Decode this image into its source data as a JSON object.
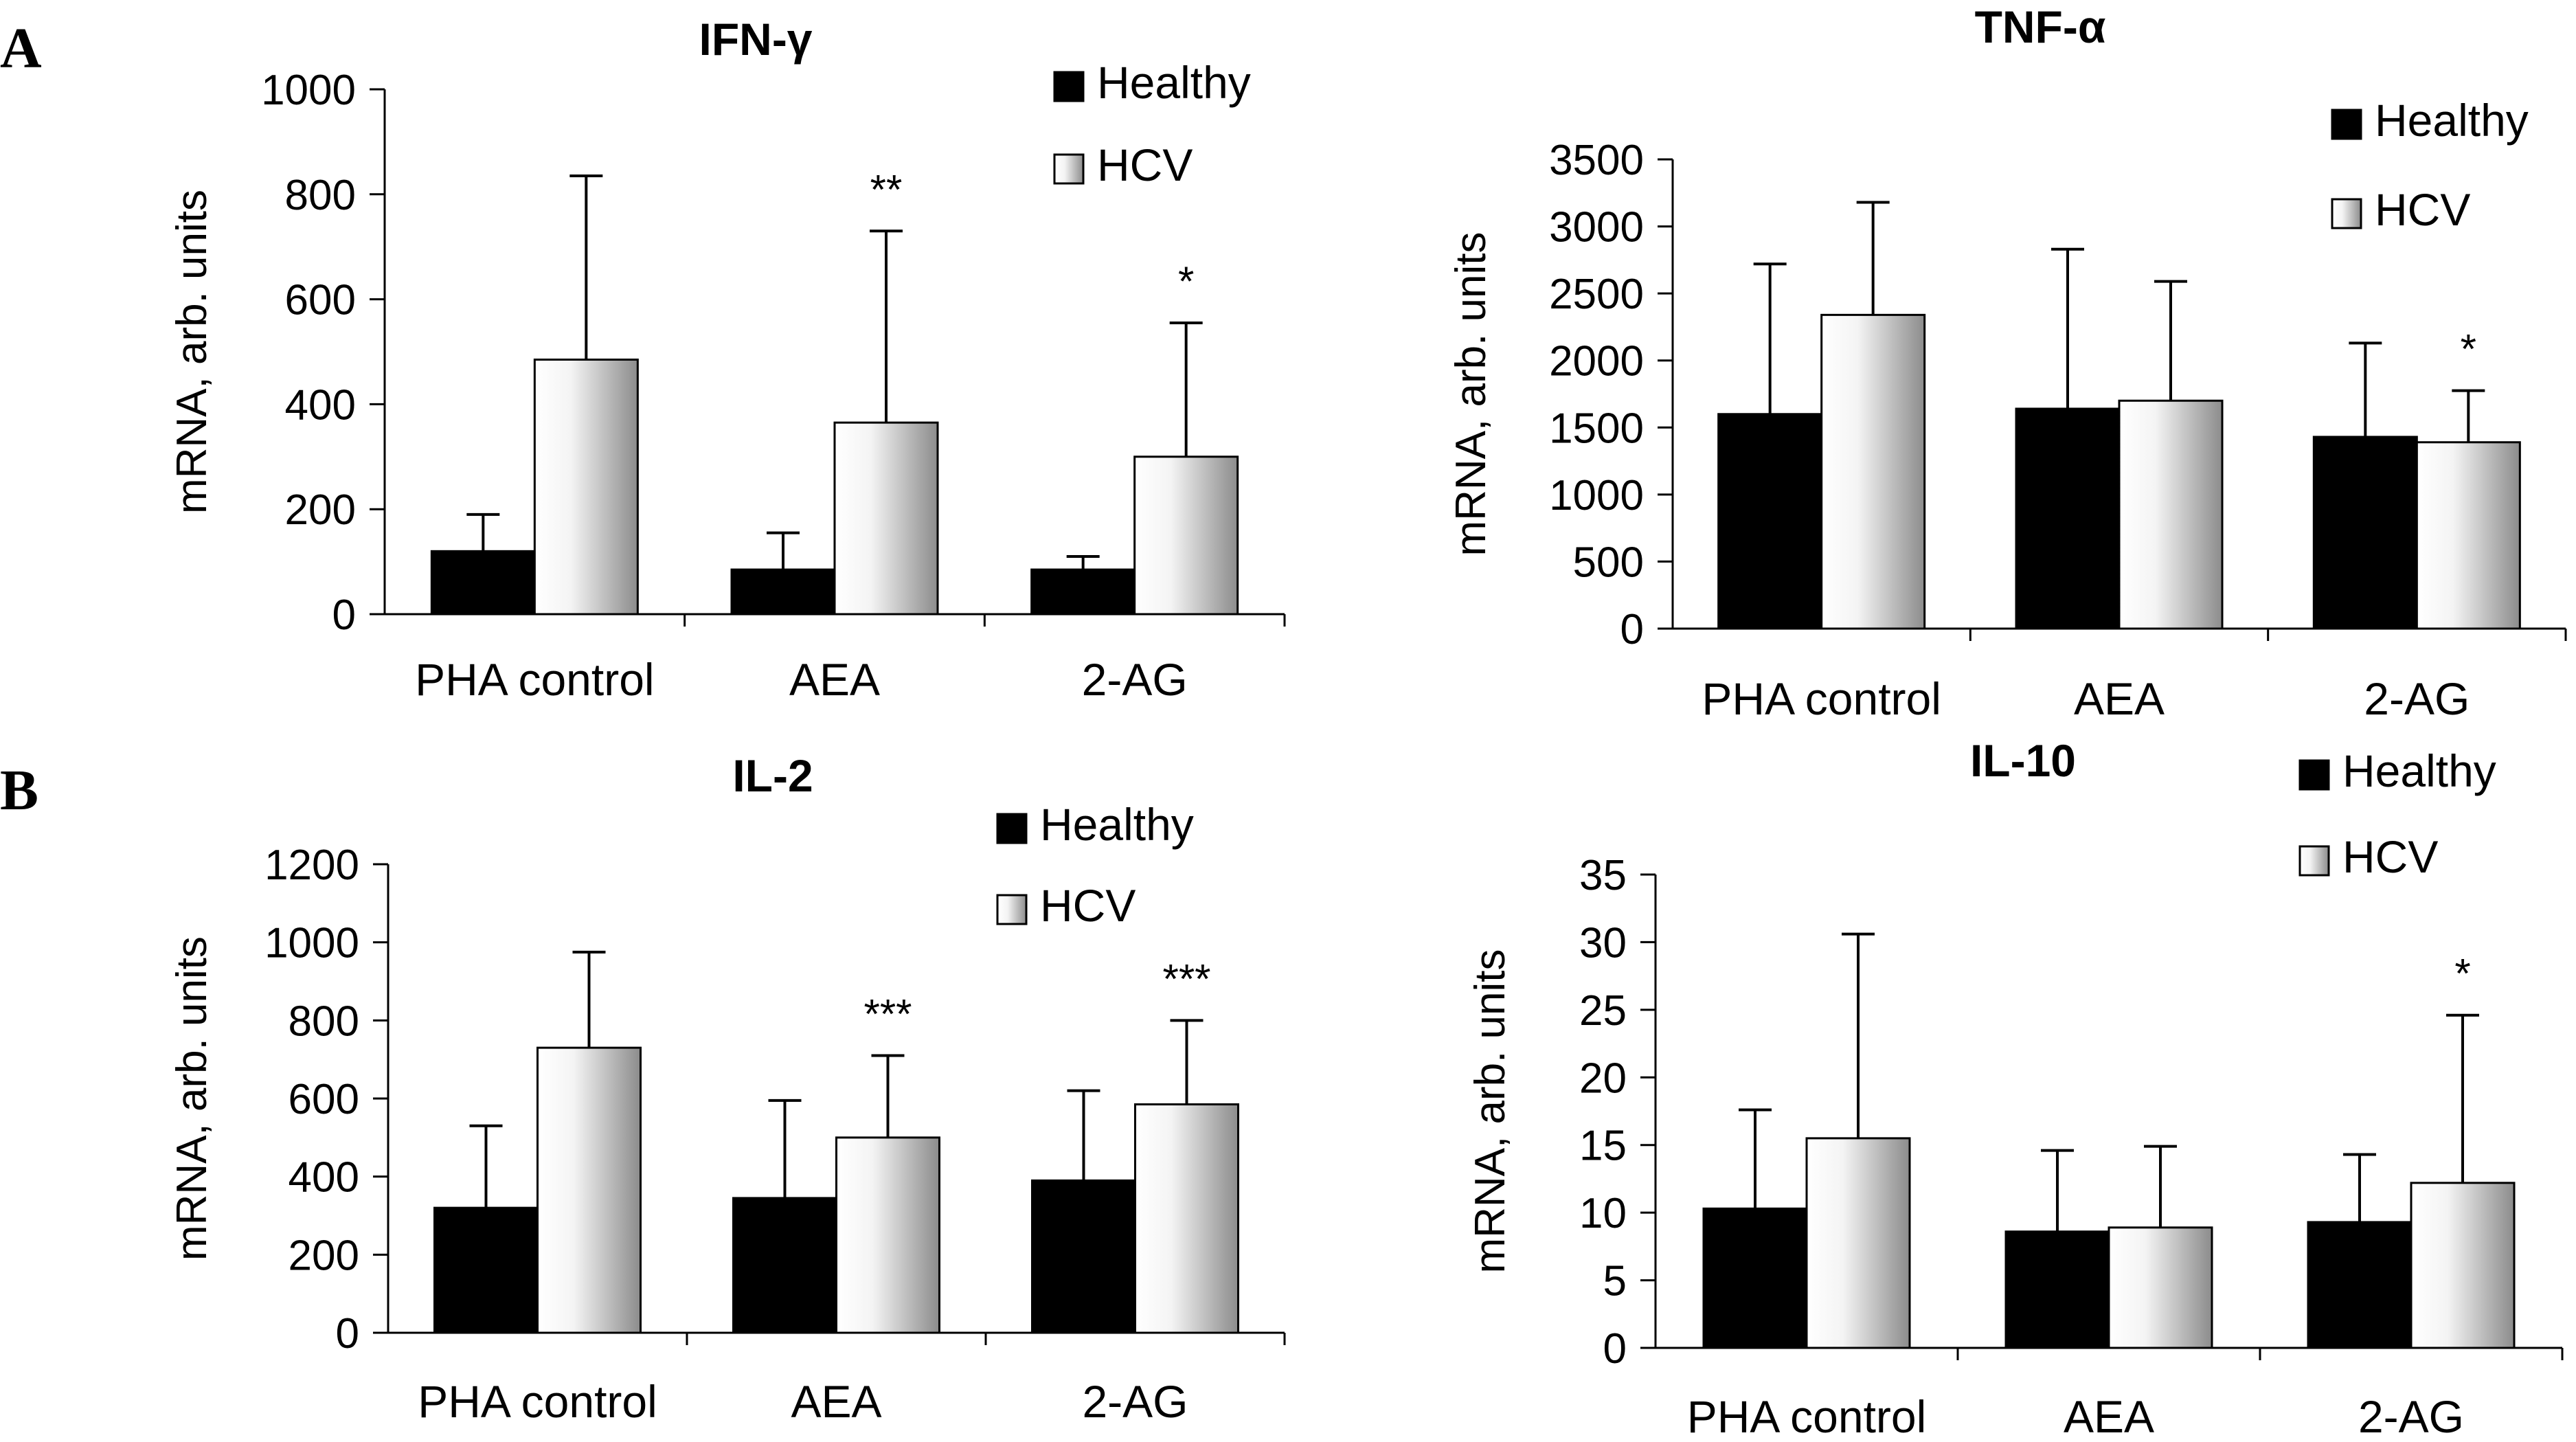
{
  "panel_labels": [
    "A",
    "B"
  ],
  "series_names": [
    "Healthy",
    "HCV"
  ],
  "colors": {
    "healthy": "#000000",
    "hcv_light": "#ffffff",
    "hcv_dark": "#8c8c8c"
  },
  "chart_data": [
    {
      "type": "bar",
      "title": "IFN-γ",
      "ylabel": "mRNA, arb. units",
      "categories": [
        "PHA control",
        "AEA",
        "2-AG"
      ],
      "ylim": [
        0,
        1000
      ],
      "yticks": [
        0,
        200,
        400,
        600,
        800,
        1000
      ],
      "legend": "top-right",
      "series": [
        {
          "name": "Healthy",
          "values": [
            120,
            85,
            85
          ],
          "errors": [
            70,
            70,
            25
          ]
        },
        {
          "name": "HCV",
          "values": [
            485,
            365,
            300
          ],
          "errors": [
            350,
            365,
            255
          ]
        }
      ],
      "annotations": [
        "",
        "**",
        "*"
      ]
    },
    {
      "type": "bar",
      "title": "TNF-α",
      "ylabel": "mRNA, arb. units",
      "categories": [
        "PHA control",
        "AEA",
        "2-AG"
      ],
      "ylim": [
        0,
        3500
      ],
      "yticks": [
        0,
        500,
        1000,
        1500,
        2000,
        2500,
        3000,
        3500
      ],
      "legend": "top-right",
      "series": [
        {
          "name": "Healthy",
          "values": [
            1600,
            1640,
            1430
          ],
          "errors": [
            1120,
            1190,
            700
          ]
        },
        {
          "name": "HCV",
          "values": [
            2340,
            1700,
            1390
          ],
          "errors": [
            840,
            890,
            385
          ]
        }
      ],
      "annotations": [
        "",
        "",
        "*"
      ]
    },
    {
      "type": "bar",
      "title": "IL-2",
      "ylabel": "mRNA, arb. units",
      "categories": [
        "PHA control",
        "AEA",
        "2-AG"
      ],
      "ylim": [
        0,
        1200
      ],
      "yticks": [
        0,
        200,
        400,
        600,
        800,
        1000,
        1200
      ],
      "legend": "top-right",
      "series": [
        {
          "name": "Healthy",
          "values": [
            320,
            345,
            390
          ],
          "errors": [
            210,
            250,
            230
          ]
        },
        {
          "name": "HCV",
          "values": [
            730,
            500,
            585
          ],
          "errors": [
            245,
            210,
            215
          ]
        }
      ],
      "annotations": [
        "",
        "***",
        "***"
      ]
    },
    {
      "type": "bar",
      "title": "IL-10",
      "ylabel": "mRNA, arb. units",
      "categories": [
        "PHA control",
        "AEA",
        "2-AG"
      ],
      "ylim": [
        0,
        35
      ],
      "yticks": [
        0,
        5,
        10,
        15,
        20,
        25,
        30,
        35
      ],
      "legend": "top-right",
      "series": [
        {
          "name": "Healthy",
          "values": [
            10.3,
            8.6,
            9.3
          ],
          "errors": [
            7.3,
            6.0,
            5.0
          ]
        },
        {
          "name": "HCV",
          "values": [
            15.5,
            8.9,
            12.2
          ],
          "errors": [
            15.1,
            6.0,
            12.4
          ]
        }
      ],
      "annotations": [
        "",
        "",
        "*"
      ]
    }
  ]
}
